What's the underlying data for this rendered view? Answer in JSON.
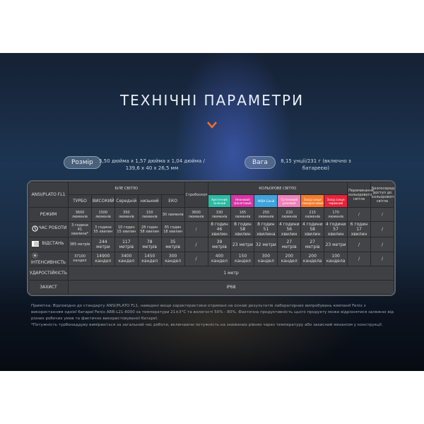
{
  "title": "ТЕХНІЧНІ ПАРАМЕТРИ",
  "size": {
    "label": "Розмір",
    "value_line1": "5,50 дюйма x 1,57 дюйма x 1,04 дюйма /",
    "value_line2": "139,6 x 40 x 26,5 мм"
  },
  "weight": {
    "label": "Вага",
    "value_line1": "8,15 унції/231 г (включно з",
    "value_line2": "батареєю)"
  },
  "table": {
    "standard": "ANSI/PLATO FL1",
    "white_group": "БІЛЕ СВІТЛО",
    "color_group": "КОЛЬОРОВЕ СВІТЛО",
    "strobe": "Стробоскоп",
    "switch_color": "Перемикання кольорового світла",
    "direct_color": "Безпосередній доступ до кольорового світла",
    "modes": [
      "ТУРБО",
      "ВИСОКИЙ",
      "Середній",
      "низький",
      "ЕКО"
    ],
    "colors": [
      {
        "label": "Арктичний зелений",
        "color": "#2bb9a2"
      },
      {
        "label": "Неоновий фіолетовий",
        "color": "#d634a4"
      },
      {
        "label": "АКВА Синій",
        "color": "#3fa3dc"
      },
      {
        "label": "Сутінковий рожевий",
        "color": "#f07fb8"
      },
      {
        "label": "Захід сонця помаранчевий",
        "color": "#f47a2a"
      },
      {
        "label": "Захід сонця червоний",
        "color": "#e8233a"
      }
    ],
    "rows": [
      {
        "label": "РЕЖИМ",
        "values": [
          "3600 люменів",
          "1500 люменів",
          "350 люменів",
          "150 люменів",
          "30 люменів",
          "3600 люменів",
          "330 люменів",
          "165 люменів",
          "250 люменів",
          "210 люменів",
          "215 люменів",
          "170 люменів",
          "/",
          "/"
        ]
      },
      {
        "label": "ЧАС РОБОТИ",
        "icon": "clock",
        "values": [
          "3 години 41 хвилина*",
          "3 години 55 хвилин",
          "10 годин 15 хвилин",
          "28 годин 58 хвилин",
          "65 годин 18 хвилин",
          "/",
          "8 годин 46 хвилин",
          "8 годин 58 хвилин",
          "8 годин 51 хвилина",
          "4 години 56 хвилин",
          "4 години 58 хвилин",
          "4 години 57 хвилин",
          "6 годин 17 хвилин",
          "/"
        ]
      },
      {
        "label": "ВІДСТАНЬ",
        "icon": "beam",
        "values": [
          "385 метрів",
          "244 метри",
          "117 метрів",
          "78 метрів",
          "35 метрів",
          "/",
          "39 метрів",
          "23 метри",
          "32 метри",
          "27 метрів",
          "27 метрів",
          "23 метри",
          "/",
          "/"
        ]
      },
      {
        "label": "ІНТЕНСИВНІСТЬ",
        "icon": "burst",
        "values": [
          "37100 кандел",
          "14900 кандел",
          "3400 кандел",
          "1450 кандел",
          "300 кандел",
          "/",
          "400 кандел",
          "150 кандел",
          "300 кандел",
          "200 кандел",
          "200 кандела",
          "100 кандела",
          "/",
          "/"
        ]
      }
    ],
    "impact": {
      "label": "УДАРОСТІЙКІСТЬ",
      "value": "1 метр"
    },
    "protection": {
      "label": "ЗАХИСТ",
      "value": "IP68"
    }
  },
  "note_1": "Примітка: Відповідно до стандарту ANSI/PLATO FL1, наведені вище характеристики отримані на основі результатів лабораторних випробувань компанії Fenix з використанням однієї батареї Fenix ARB-L21-6000 за температури 21±3°C та вологості 50% - 80%. Фактична продуктивність цього продукту може відрізнятися залежно від різних робочих умов та фактично використовуваної батареї.",
  "note_2": "*Потужність турбонаддуву вимірюється за загальний час роботи, включаючи потужність на знижених рівнях через температуру або захисний механізм у конструкції."
}
